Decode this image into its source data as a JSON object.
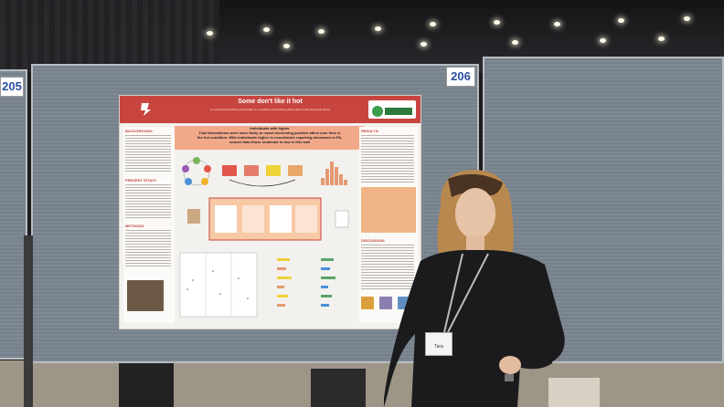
{
  "booths": {
    "left_number": "205",
    "center_number": "206"
  },
  "poster": {
    "title": "Some don't like it hot",
    "subtitle": "An emotional sensitivity personality as a predictor of increasing affect when undergoing heat stress",
    "left_logo": "csu",
    "right_logo": "ERI Lab",
    "banner_line1": "Individuals with higher",
    "banner_line2": "Trait Neuroticism were more likely to report worsening positive affect over time in",
    "banner_line3": "the hot condition. With individuals higher in neuroticism reporting decreases in PA,",
    "banner_line4": "sooner than those moderate to low in this trait",
    "sections": {
      "background": "BACKGROUND:",
      "present_study": "PRESENT STUDY:",
      "methods": "METHODS:",
      "results": "RESULTS:",
      "discussion": "DISCUSSION:"
    }
  },
  "badge": {
    "name": "Tara"
  },
  "colors": {
    "poster_red": "#c8453f",
    "panel_gray": "#7a8591",
    "floor": "#9d9586"
  }
}
